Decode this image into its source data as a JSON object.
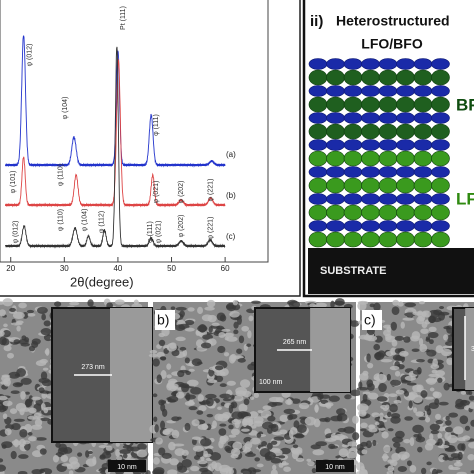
{
  "xrd": {
    "x_label": "2θ(degree)",
    "xlim": [
      18,
      68
    ],
    "xticks": [
      20,
      30,
      40,
      50,
      60
    ],
    "trace_labels": [
      "(a)",
      "(b)",
      "(c)"
    ],
    "peak_labels": {
      "a": [
        "φ (012)",
        "φ (104)",
        "Pt (111)",
        "φ (111)"
      ],
      "b": [
        "φ (101)",
        "φ (110)",
        "φ (021)",
        "φ (202)",
        "φ (221)"
      ],
      "c": [
        "φ (012)",
        "φ (110)",
        "φ (104)",
        "φ (112)",
        "φ (111)",
        "φ (021)",
        "φ (202)",
        "φ (221)"
      ]
    }
  },
  "schematic": {
    "label": "ii)",
    "title": "Heterostructured",
    "subtitle": "LFO/BFO",
    "layer_labels": [
      "BF",
      "LF"
    ],
    "substrate": "SUBSTRATE"
  },
  "sem": {
    "panels": [
      {
        "inset_scale": "273 nm",
        "scale_bar": "10 nm"
      },
      {
        "label": "b)",
        "inset_scale": "265 nm",
        "inset_bar": "100 nm",
        "scale_bar": "10 nm"
      },
      {
        "label": "c)",
        "inset_scale": "3"
      }
    ]
  }
}
